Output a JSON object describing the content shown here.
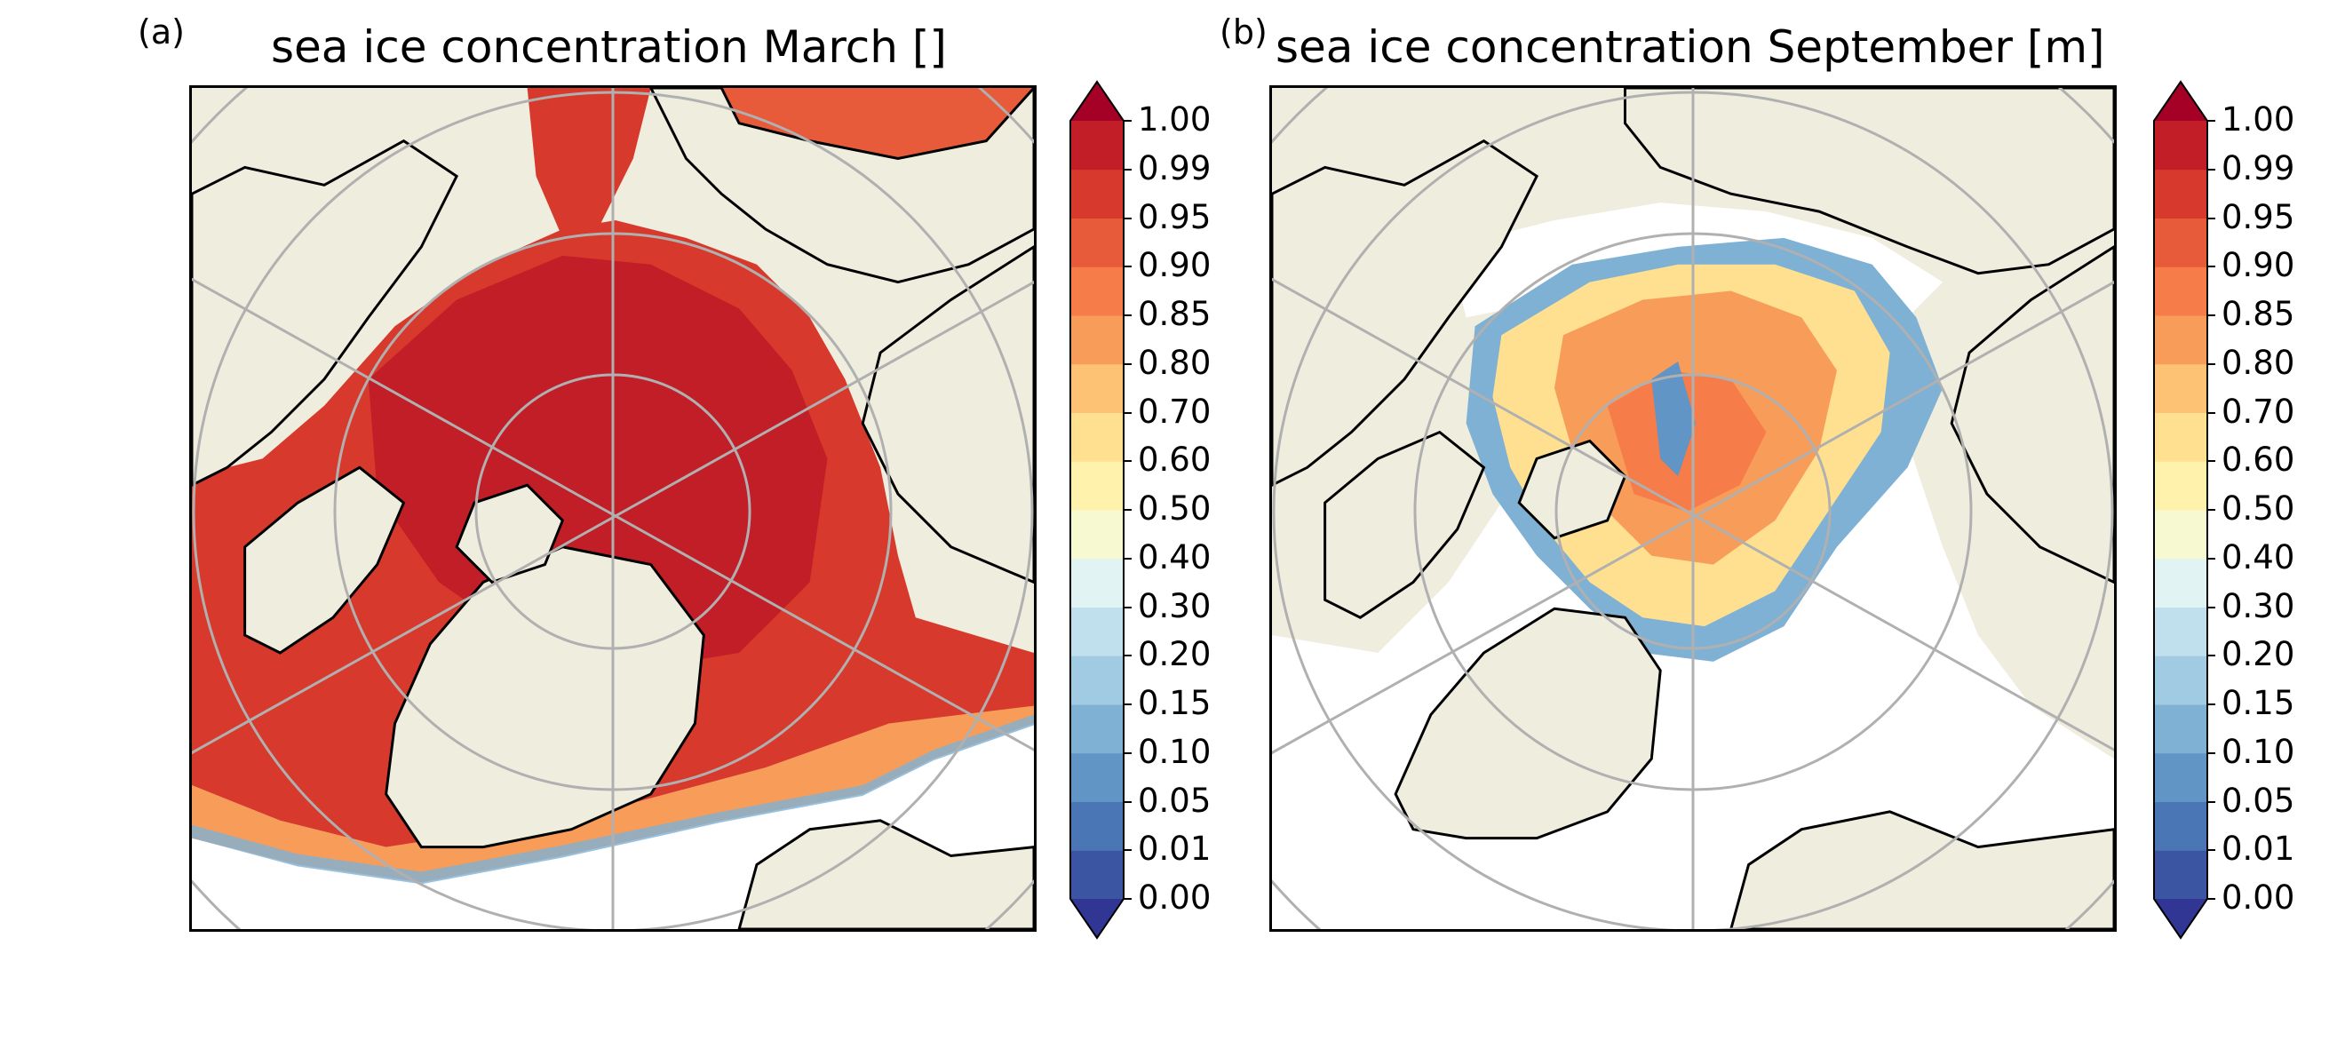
{
  "figure": {
    "panels": [
      {
        "label": "(a)",
        "title": "sea ice concentration March []",
        "season": "March"
      },
      {
        "label": "(b)",
        "title": "sea ice concentration September [m]",
        "season": "September"
      }
    ]
  },
  "colorbar": {
    "ticks": [
      "0.00",
      "0.01",
      "0.05",
      "0.10",
      "0.15",
      "0.20",
      "0.30",
      "0.40",
      "0.50",
      "0.60",
      "0.70",
      "0.80",
      "0.85",
      "0.90",
      "0.95",
      "0.99",
      "1.00"
    ],
    "colors": [
      "#3c55a3",
      "#4a76b5",
      "#6095c6",
      "#7fb1d5",
      "#a1cbe2",
      "#c1e0ed",
      "#e1f3f3",
      "#f7fad1",
      "#fff2ac",
      "#fee090",
      "#fdc273",
      "#f89d59",
      "#f67c4a",
      "#e75a3a",
      "#d73a2c",
      "#c11e27"
    ],
    "under_color": "#313695",
    "over_color": "#a50026",
    "extend": "both"
  },
  "map": {
    "projection": "north polar stereographic",
    "land_color": "#efedde",
    "ocean_no_ice_color": "#ffffff",
    "graticule_color": "#b0b0b0",
    "coastline_color": "#000000"
  }
}
